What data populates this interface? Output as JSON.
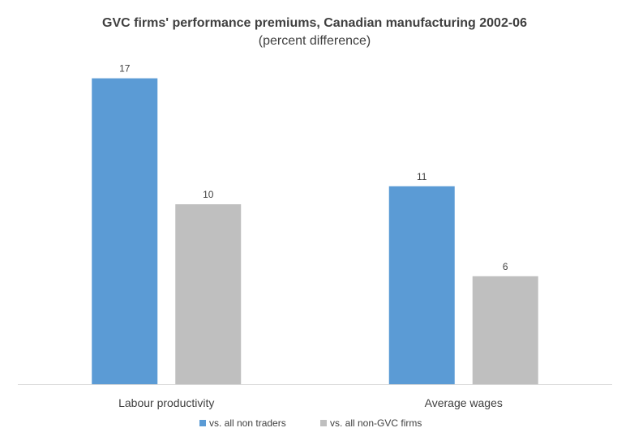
{
  "chart_data": {
    "type": "bar",
    "title": "GVC firms' performance premiums, Canadian manufacturing 2002-06",
    "subtitle": "(percent difference)",
    "categories": [
      "Labour productivity",
      "Average wages"
    ],
    "series": [
      {
        "name": "vs. all non traders",
        "values": [
          17,
          11
        ],
        "color": "#5b9bd5"
      },
      {
        "name": "vs. all non-GVC firms",
        "values": [
          10,
          6
        ],
        "color": "#bfbfbf"
      }
    ],
    "ylim": [
      0,
      19
    ],
    "grid": false,
    "data_labels": true,
    "legend_position": "bottom",
    "axis_color": "#d9d9d9"
  }
}
